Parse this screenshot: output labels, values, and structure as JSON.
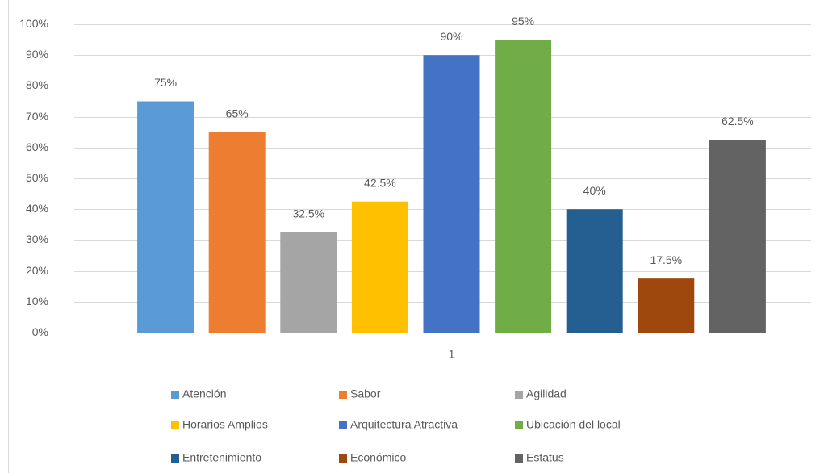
{
  "chart_data": {
    "type": "bar",
    "categories": [
      "1"
    ],
    "series": [
      {
        "name": "Atención",
        "color": "#5b9bd5",
        "values": [
          75
        ],
        "value_labels": [
          "75%"
        ]
      },
      {
        "name": "Sabor",
        "color": "#ed7d31",
        "values": [
          65
        ],
        "value_labels": [
          "65%"
        ]
      },
      {
        "name": "Agilidad",
        "color": "#a5a5a5",
        "values": [
          32.5
        ],
        "value_labels": [
          "32.5%"
        ]
      },
      {
        "name": "Horarios Amplios",
        "color": "#ffc000",
        "values": [
          42.5
        ],
        "value_labels": [
          "42.5%"
        ]
      },
      {
        "name": "Arquitectura Atractiva",
        "color": "#4472c4",
        "values": [
          90
        ],
        "value_labels": [
          "90%"
        ]
      },
      {
        "name": "Ubicación del local",
        "color": "#70ad47",
        "values": [
          95
        ],
        "value_labels": [
          "95%"
        ]
      },
      {
        "name": "Entretenimiento",
        "color": "#255e91",
        "values": [
          40
        ],
        "value_labels": [
          "40%"
        ]
      },
      {
        "name": "Económico",
        "color": "#9e480e",
        "values": [
          17.5
        ],
        "value_labels": [
          "17.5%"
        ]
      },
      {
        "name": "Estatus",
        "color": "#636363",
        "values": [
          62.5
        ],
        "value_labels": [
          "62.5%"
        ]
      }
    ],
    "ylim": [
      0,
      100
    ],
    "yticks": [
      {
        "value": 0,
        "label": "0%"
      },
      {
        "value": 10,
        "label": "10%"
      },
      {
        "value": 20,
        "label": "20%"
      },
      {
        "value": 30,
        "label": "30%"
      },
      {
        "value": 40,
        "label": "40%"
      },
      {
        "value": 50,
        "label": "50%"
      },
      {
        "value": 60,
        "label": "60%"
      },
      {
        "value": 70,
        "label": "70%"
      },
      {
        "value": 80,
        "label": "80%"
      },
      {
        "value": 90,
        "label": "90%"
      },
      {
        "value": 100,
        "label": "100%"
      }
    ],
    "grid": true,
    "legend": "bottom"
  }
}
